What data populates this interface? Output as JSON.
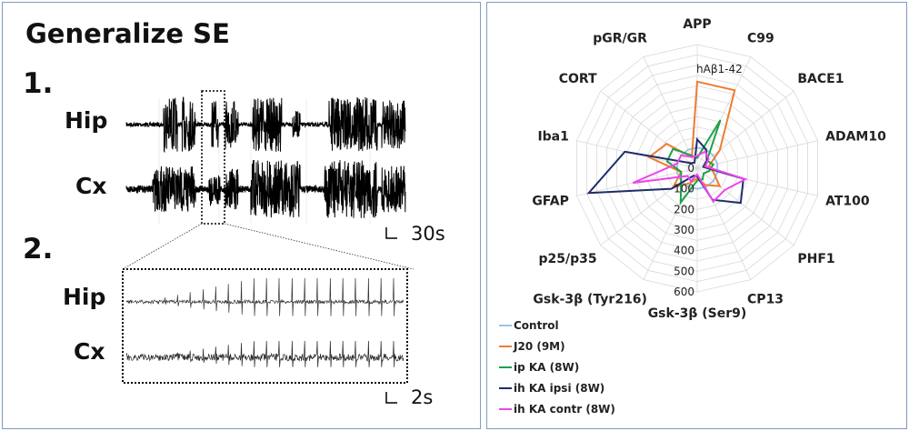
{
  "left_panel": {
    "title": "Generalize SE",
    "section1": {
      "number": "1.",
      "hip_label": "Hip",
      "cx_label": "Cx",
      "scale_label": "30s"
    },
    "section2": {
      "number": "2.",
      "hip_label": "Hip",
      "cx_label": "Cx",
      "scale_label": "2s"
    }
  },
  "chart_data": {
    "type": "radar",
    "annotation": "hAβ1-42",
    "axes": [
      "APP",
      "C99",
      "BACE1",
      "ADAM10",
      "AT100",
      "PHF1",
      "CP13",
      "Gsk-3β (Ser9)",
      "Gsk-3β (Tyr216)",
      "p25/p35",
      "GFAP",
      "Iba1",
      "CORT",
      "pGR/GR"
    ],
    "rlim": [
      0,
      600
    ],
    "ticks": [
      "0",
      "100",
      "200",
      "300",
      "400",
      "500",
      "600"
    ],
    "grid": true,
    "legend_position": "bottom-left",
    "series": [
      {
        "name": "Control",
        "color": "#9dc3e6",
        "values": [
          100,
          100,
          100,
          100,
          100,
          100,
          100,
          100,
          100,
          100,
          100,
          100,
          100,
          100
        ]
      },
      {
        "name": "J20 (9M)",
        "color": "#ed7d31",
        "values": [
          420,
          420,
          140,
          60,
          80,
          140,
          90,
          50,
          80,
          150,
          80,
          240,
          190,
          60
        ]
      },
      {
        "name": "ip KA (8W)",
        "color": "#1fa04a",
        "values": [
          50,
          260,
          60,
          80,
          60,
          40,
          60,
          60,
          185,
          100,
          80,
          150,
          150,
          70
        ]
      },
      {
        "name": "ih KA ipsi (8W)",
        "color": "#1f2d6b",
        "values": [
          140,
          100,
          60,
          30,
          230,
          270,
          170,
          40,
          40,
          160,
          540,
          360,
          40,
          30
        ]
      },
      {
        "name": "ih KA contr (8W)",
        "color": "#ee44ee",
        "values": [
          60,
          90,
          70,
          40,
          240,
          170,
          180,
          30,
          70,
          60,
          320,
          100,
          100,
          60
        ]
      }
    ]
  }
}
